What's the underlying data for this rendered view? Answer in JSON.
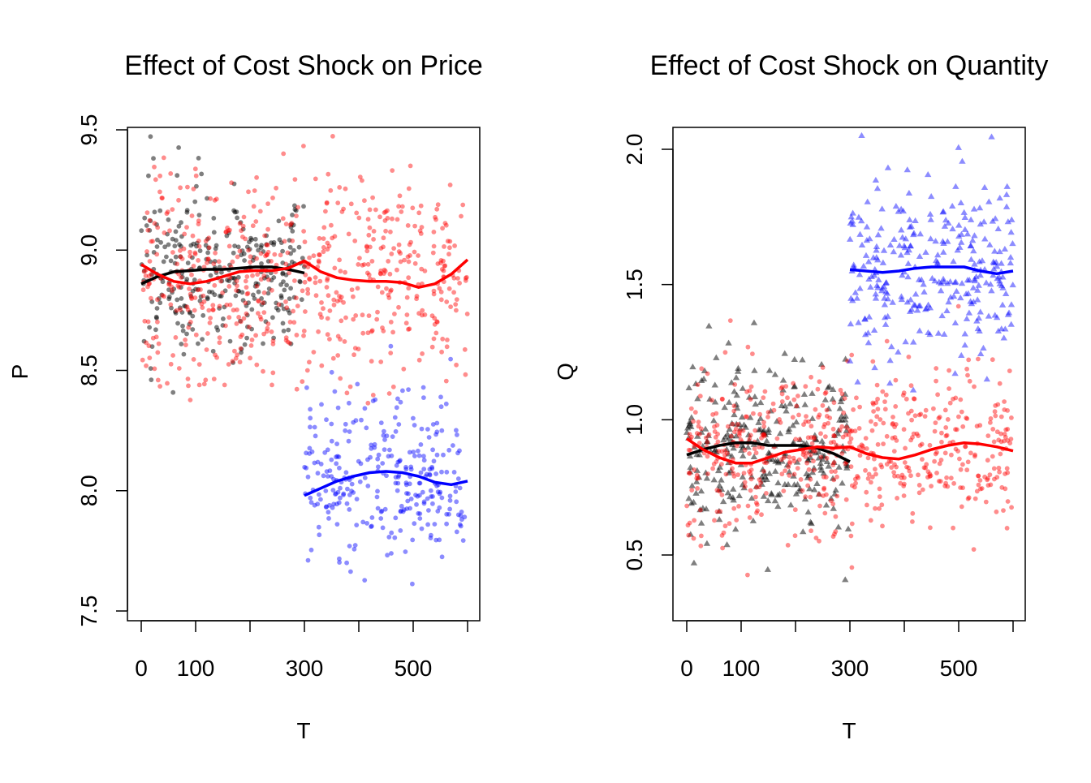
{
  "chart_data": [
    {
      "type": "scatter",
      "title": "Effect of Cost Shock on Price",
      "xlabel": "T",
      "ylabel": "P",
      "xlim": [
        0,
        600
      ],
      "ylim": [
        7.5,
        9.5
      ],
      "xticks": [
        0,
        100,
        200,
        300,
        400,
        500,
        600
      ],
      "xtick_labels": [
        "0",
        "100",
        "",
        "300",
        "",
        "500",
        ""
      ],
      "yticks": [
        7.5,
        8.0,
        8.5,
        9.0,
        9.5
      ],
      "ytick_labels": [
        "7.5",
        "8.0",
        "8.5",
        "9.0",
        "9.5"
      ],
      "grid": false,
      "legend": "none",
      "scatter_series": [
        {
          "color": "#000000",
          "marker": "circle",
          "x_range": [
            0,
            300
          ],
          "center": 8.9,
          "spread": 0.18,
          "count": 300
        },
        {
          "color": "#ff0000",
          "marker": "circle",
          "x_range": [
            0,
            600
          ],
          "center": 8.88,
          "spread": 0.2,
          "count": 600
        },
        {
          "color": "#0000ff",
          "marker": "circle",
          "x_range": [
            300,
            600
          ],
          "center": 8.05,
          "spread": 0.17,
          "count": 300
        }
      ],
      "smooth_lines": [
        {
          "color": "#000000",
          "x": [
            0,
            30,
            60,
            90,
            120,
            150,
            180,
            210,
            240,
            270,
            300
          ],
          "y": [
            8.86,
            8.89,
            8.91,
            8.915,
            8.92,
            8.92,
            8.925,
            8.93,
            8.93,
            8.92,
            8.905
          ]
        },
        {
          "color": "#ff0000",
          "x": [
            0,
            30,
            60,
            90,
            120,
            150,
            180,
            210,
            240,
            270,
            300,
            330,
            360,
            390,
            420,
            450,
            480,
            510,
            540,
            570,
            600
          ],
          "y": [
            8.94,
            8.9,
            8.87,
            8.86,
            8.87,
            8.89,
            8.91,
            8.915,
            8.915,
            8.925,
            8.955,
            8.91,
            8.885,
            8.875,
            8.87,
            8.87,
            8.865,
            8.845,
            8.86,
            8.9,
            8.96
          ]
        },
        {
          "color": "#0000ff",
          "x": [
            300,
            330,
            360,
            390,
            420,
            450,
            480,
            510,
            540,
            570,
            600
          ],
          "y": [
            7.98,
            8.01,
            8.04,
            8.06,
            8.075,
            8.08,
            8.075,
            8.06,
            8.035,
            8.025,
            8.04
          ]
        }
      ]
    },
    {
      "type": "scatter",
      "title": "Effect of Cost Shock on Quantity",
      "xlabel": "T",
      "ylabel": "Q",
      "xlim": [
        0,
        600
      ],
      "ylim": [
        0.25,
        2.05
      ],
      "xticks": [
        0,
        100,
        200,
        300,
        400,
        500,
        600
      ],
      "xtick_labels": [
        "0",
        "100",
        "",
        "300",
        "",
        "500",
        ""
      ],
      "yticks": [
        0.5,
        1.0,
        1.5,
        2.0
      ],
      "ytick_labels": [
        "0.5",
        "1.0",
        "1.5",
        "2.0"
      ],
      "grid": false,
      "legend": "none",
      "scatter_series": [
        {
          "color": "#000000",
          "marker": "triangle",
          "x_range": [
            0,
            300
          ],
          "center": 0.9,
          "spread": 0.16,
          "count": 300
        },
        {
          "color": "#ff0000",
          "marker": "circle",
          "x_range": [
            0,
            600
          ],
          "center": 0.88,
          "spread": 0.15,
          "count": 600
        },
        {
          "color": "#0000ff",
          "marker": "triangle",
          "x_range": [
            300,
            600
          ],
          "center": 1.55,
          "spread": 0.17,
          "count": 300
        }
      ],
      "smooth_lines": [
        {
          "color": "#000000",
          "x": [
            0,
            30,
            60,
            90,
            120,
            150,
            180,
            210,
            240,
            270,
            300
          ],
          "y": [
            0.87,
            0.89,
            0.905,
            0.915,
            0.915,
            0.905,
            0.905,
            0.905,
            0.895,
            0.875,
            0.845
          ]
        },
        {
          "color": "#ff0000",
          "x": [
            0,
            30,
            60,
            90,
            120,
            150,
            180,
            210,
            240,
            270,
            300,
            330,
            360,
            390,
            420,
            450,
            480,
            510,
            540,
            570,
            600
          ],
          "y": [
            0.93,
            0.89,
            0.86,
            0.84,
            0.84,
            0.86,
            0.88,
            0.89,
            0.9,
            0.895,
            0.9,
            0.875,
            0.86,
            0.855,
            0.87,
            0.89,
            0.905,
            0.915,
            0.91,
            0.9,
            0.885
          ]
        },
        {
          "color": "#0000ff",
          "x": [
            300,
            330,
            360,
            390,
            420,
            450,
            480,
            510,
            540,
            570,
            600
          ],
          "y": [
            1.555,
            1.55,
            1.545,
            1.55,
            1.56,
            1.565,
            1.565,
            1.565,
            1.55,
            1.54,
            1.55
          ]
        }
      ]
    }
  ]
}
